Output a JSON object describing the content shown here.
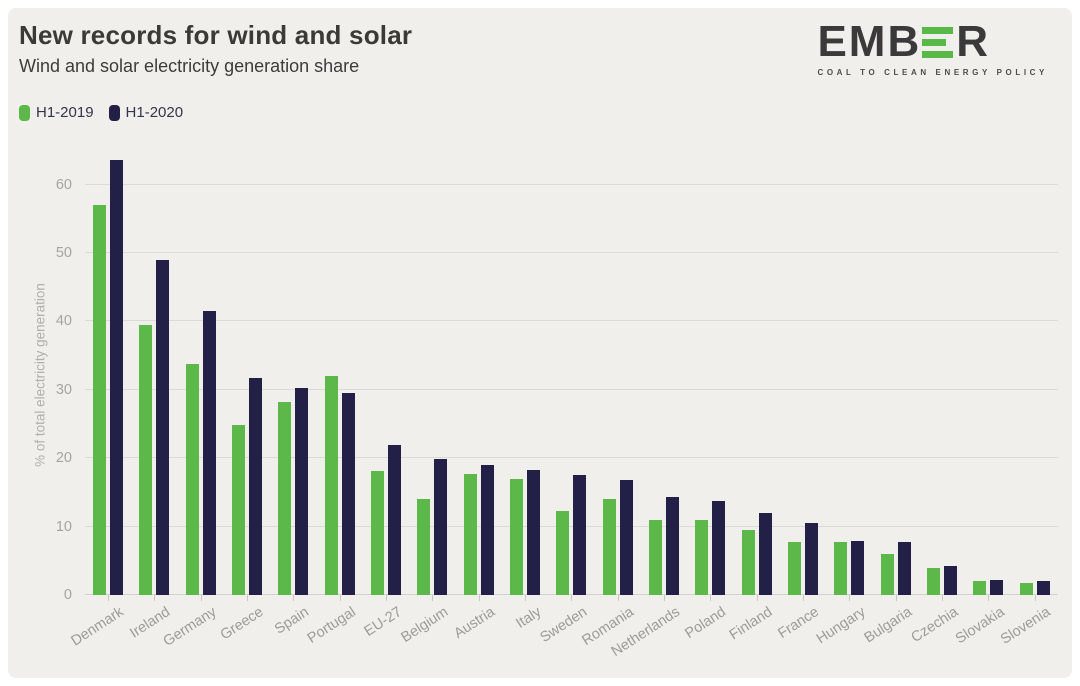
{
  "page": {
    "background": "#ffffff",
    "card_background": "#f0efec"
  },
  "header": {
    "title": "New records for wind and solar",
    "subtitle": "Wind and solar electricity generation share"
  },
  "logo": {
    "word_start": "EMB",
    "word_end": "R",
    "green_e_icon": "three-green-bars-e",
    "tagline": "COAL TO CLEAN ENERGY POLICY",
    "text_color": "#3a3a3a",
    "bar_color": "#58b947"
  },
  "legend": {
    "items": [
      {
        "label": "H1-2019",
        "color": "#5cb848"
      },
      {
        "label": "H1-2020",
        "color": "#232048"
      }
    ]
  },
  "chart_data": {
    "type": "bar",
    "title": "New records for wind and solar",
    "subtitle": "Wind and solar electricity generation share",
    "xlabel": "",
    "ylabel": "% of total electricity generation",
    "ylim": [
      0,
      65
    ],
    "yticks": [
      0,
      10,
      20,
      30,
      40,
      50,
      60
    ],
    "grid": true,
    "legend_position": "top-left",
    "categories": [
      "Denmark",
      "Ireland",
      "Germany",
      "Greece",
      "Spain",
      "Portugal",
      "EU-27",
      "Belgium",
      "Austria",
      "Italy",
      "Sweden",
      "Romania",
      "Netherlands",
      "Poland",
      "Finland",
      "France",
      "Hungary",
      "Bulgaria",
      "Czechia",
      "Slovakia",
      "Slovenia"
    ],
    "series": [
      {
        "name": "H1-2019",
        "color": "#5cb848",
        "values": [
          57.0,
          39.5,
          33.8,
          24.9,
          28.2,
          32.0,
          18.2,
          14.0,
          17.7,
          16.9,
          12.3,
          14.1,
          11.0,
          10.9,
          9.5,
          7.8,
          7.7,
          6.0,
          4.0,
          2.0,
          1.8
        ]
      },
      {
        "name": "H1-2020",
        "color": "#232048",
        "values": [
          63.6,
          49.0,
          41.5,
          31.7,
          30.3,
          29.6,
          21.9,
          19.9,
          19.0,
          18.3,
          17.6,
          16.8,
          14.4,
          13.7,
          12.0,
          10.6,
          7.9,
          7.7,
          4.3,
          2.2,
          2.1
        ]
      }
    ],
    "unit": "%"
  }
}
